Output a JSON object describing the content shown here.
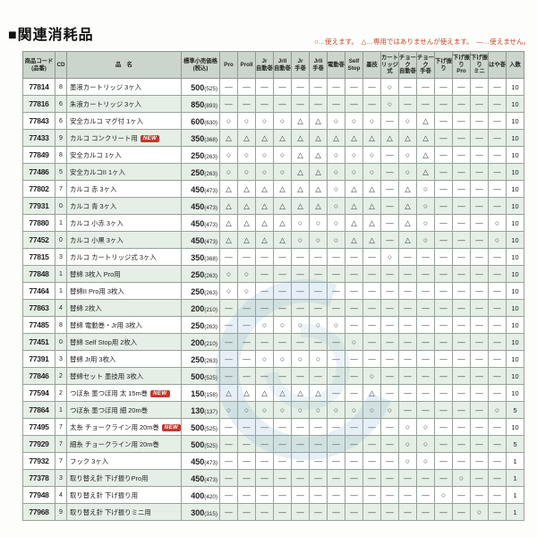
{
  "page": {
    "title": "■関連消耗品"
  },
  "legend": {
    "text": "○…使えます。　△…専用ではありませんが使えます。　—…使えません。"
  },
  "table": {
    "headers": {
      "code": "商品コード\n(品番)",
      "cd": "CD",
      "name": "品　名",
      "price": "標準小売価格\n(税込)",
      "qty": "入数"
    },
    "machine_columns": [
      "Pro",
      "ProII",
      "Jr\n自動巻",
      "JrII\n自動巻",
      "Jr\n手巻",
      "JrII\n手巻",
      "電動巻",
      "Self\nStop",
      "墨技",
      "カート\nリッジ式",
      "チョーク\n自動巻",
      "チョーク\n手巻",
      "下げ振り",
      "下げ振り\nPro",
      "下げ振り\nミニ",
      "はや巻"
    ],
    "new_badge": "NEW",
    "rows": [
      {
        "code": "77814",
        "cd": "8",
        "name": "墨液カートリッジ 3ヶ入",
        "new": false,
        "price": "500",
        "tax": "(525)",
        "marks": [
          "—",
          "—",
          "—",
          "—",
          "—",
          "—",
          "—",
          "—",
          "—",
          "○",
          "—",
          "—",
          "—",
          "—",
          "—",
          "—"
        ],
        "qty": "10"
      },
      {
        "code": "77816",
        "cd": "6",
        "name": "朱液カートリッジ 3ヶ入",
        "new": false,
        "price": "850",
        "tax": "(893)",
        "marks": [
          "—",
          "—",
          "—",
          "—",
          "—",
          "—",
          "—",
          "—",
          "—",
          "○",
          "—",
          "—",
          "—",
          "—",
          "—",
          "—"
        ],
        "qty": "10"
      },
      {
        "code": "77843",
        "cd": "6",
        "name": "安全カルコ マグ付 1ヶ入",
        "new": false,
        "price": "600",
        "tax": "(630)",
        "marks": [
          "○",
          "○",
          "○",
          "○",
          "△",
          "△",
          "○",
          "○",
          "○",
          "—",
          "○",
          "△",
          "—",
          "—",
          "—",
          "—"
        ],
        "qty": "10"
      },
      {
        "code": "77433",
        "cd": "9",
        "name": "カルコ コンクリート用",
        "new": true,
        "price": "350",
        "tax": "(368)",
        "marks": [
          "△",
          "△",
          "△",
          "△",
          "△",
          "△",
          "△",
          "△",
          "△",
          "△",
          "△",
          "△",
          "—",
          "—",
          "—",
          "—"
        ],
        "qty": "10"
      },
      {
        "code": "77849",
        "cd": "8",
        "name": "安全カルコ 1ヶ入",
        "new": false,
        "price": "250",
        "tax": "(263)",
        "marks": [
          "○",
          "○",
          "○",
          "○",
          "△",
          "△",
          "○",
          "○",
          "○",
          "—",
          "○",
          "△",
          "—",
          "—",
          "—",
          "—"
        ],
        "qty": "10"
      },
      {
        "code": "77486",
        "cd": "5",
        "name": "安全カルコII 1ヶ入",
        "new": false,
        "price": "250",
        "tax": "(263)",
        "marks": [
          "○",
          "○",
          "○",
          "○",
          "△",
          "△",
          "○",
          "○",
          "○",
          "—",
          "○",
          "△",
          "—",
          "—",
          "—",
          "—"
        ],
        "qty": "10"
      },
      {
        "code": "77802",
        "cd": "7",
        "name": "カルコ 赤 3ヶ入",
        "new": false,
        "price": "450",
        "tax": "(473)",
        "marks": [
          "△",
          "△",
          "△",
          "△",
          "△",
          "△",
          "○",
          "△",
          "△",
          "—",
          "△",
          "○",
          "—",
          "—",
          "—",
          "—"
        ],
        "qty": "10"
      },
      {
        "code": "77931",
        "cd": "0",
        "name": "カルコ 青 3ヶ入",
        "new": false,
        "price": "450",
        "tax": "(473)",
        "marks": [
          "△",
          "△",
          "△",
          "△",
          "△",
          "△",
          "○",
          "△",
          "△",
          "—",
          "△",
          "○",
          "—",
          "—",
          "—",
          "—"
        ],
        "qty": "10"
      },
      {
        "code": "77880",
        "cd": "1",
        "name": "カルコ 小赤 3ヶ入",
        "new": false,
        "price": "450",
        "tax": "(473)",
        "marks": [
          "△",
          "△",
          "△",
          "△",
          "○",
          "○",
          "○",
          "△",
          "△",
          "—",
          "△",
          "○",
          "—",
          "—",
          "—",
          "○"
        ],
        "qty": "10"
      },
      {
        "code": "77452",
        "cd": "0",
        "name": "カルコ 小黒 3ヶ入",
        "new": false,
        "price": "450",
        "tax": "(473)",
        "marks": [
          "△",
          "△",
          "△",
          "△",
          "○",
          "○",
          "○",
          "△",
          "△",
          "—",
          "△",
          "○",
          "—",
          "—",
          "—",
          "○"
        ],
        "qty": "10"
      },
      {
        "code": "77815",
        "cd": "3",
        "name": "カルコ カートリッジ式 3ヶ入",
        "new": false,
        "price": "350",
        "tax": "(368)",
        "marks": [
          "—",
          "—",
          "—",
          "—",
          "—",
          "—",
          "—",
          "—",
          "—",
          "○",
          "—",
          "—",
          "—",
          "—",
          "—",
          "—"
        ],
        "qty": "10"
      },
      {
        "code": "77848",
        "cd": "1",
        "name": "替綿 3枚入 Pro用",
        "new": false,
        "price": "250",
        "tax": "(263)",
        "marks": [
          "○",
          "○",
          "—",
          "—",
          "—",
          "—",
          "—",
          "—",
          "—",
          "—",
          "—",
          "—",
          "—",
          "—",
          "—",
          "—"
        ],
        "qty": "10"
      },
      {
        "code": "77464",
        "cd": "1",
        "name": "替綿II Pro用 3枚入",
        "new": false,
        "price": "250",
        "tax": "(263)",
        "marks": [
          "○",
          "○",
          "—",
          "—",
          "—",
          "—",
          "—",
          "—",
          "—",
          "—",
          "—",
          "—",
          "—",
          "—",
          "—",
          "—"
        ],
        "qty": "10"
      },
      {
        "code": "77863",
        "cd": "4",
        "name": "替綿 2枚入",
        "new": false,
        "price": "200",
        "tax": "(210)",
        "marks": [
          "—",
          "—",
          "—",
          "—",
          "—",
          "—",
          "—",
          "—",
          "—",
          "—",
          "—",
          "—",
          "—",
          "—",
          "—",
          "—"
        ],
        "qty": "10"
      },
      {
        "code": "77485",
        "cd": "8",
        "name": "替綿 電動巻・Jr用 3枚入",
        "new": false,
        "price": "250",
        "tax": "(263)",
        "marks": [
          "—",
          "—",
          "○",
          "○",
          "○",
          "○",
          "○",
          "—",
          "—",
          "—",
          "—",
          "—",
          "—",
          "—",
          "—",
          "—"
        ],
        "qty": "10"
      },
      {
        "code": "77451",
        "cd": "0",
        "name": "替綿 Self Stop用 2枚入",
        "new": false,
        "price": "200",
        "tax": "(210)",
        "marks": [
          "—",
          "—",
          "—",
          "—",
          "—",
          "—",
          "—",
          "○",
          "—",
          "—",
          "—",
          "—",
          "—",
          "—",
          "—",
          "—"
        ],
        "qty": "10"
      },
      {
        "code": "77391",
        "cd": "3",
        "name": "替綿 Jr用 3枚入",
        "new": false,
        "price": "250",
        "tax": "(263)",
        "marks": [
          "—",
          "—",
          "○",
          "○",
          "○",
          "○",
          "—",
          "—",
          "—",
          "—",
          "—",
          "—",
          "—",
          "—",
          "—",
          "—"
        ],
        "qty": "10"
      },
      {
        "code": "77846",
        "cd": "2",
        "name": "替綿セット 墨技用 3枚入",
        "new": false,
        "price": "500",
        "tax": "(525)",
        "marks": [
          "—",
          "—",
          "—",
          "—",
          "—",
          "—",
          "—",
          "—",
          "○",
          "—",
          "—",
          "—",
          "—",
          "—",
          "—",
          "—"
        ],
        "qty": "10"
      },
      {
        "code": "77594",
        "cd": "2",
        "name": "つぼ糸 墨つぼ用 太 15m巻",
        "new": true,
        "price": "150",
        "tax": "(158)",
        "marks": [
          "△",
          "△",
          "△",
          "△",
          "△",
          "△",
          "—",
          "—",
          "△",
          "—",
          "—",
          "—",
          "—",
          "—",
          "—",
          "—"
        ],
        "qty": "10"
      },
      {
        "code": "77864",
        "cd": "1",
        "name": "つぼ糸 墨つぼ用 細 20m巻",
        "new": false,
        "price": "130",
        "tax": "(137)",
        "marks": [
          "○",
          "○",
          "○",
          "○",
          "○",
          "○",
          "○",
          "○",
          "○",
          "○",
          "—",
          "—",
          "—",
          "—",
          "—",
          "○"
        ],
        "qty": "5"
      },
      {
        "code": "77495",
        "cd": "7",
        "name": "太糸 チョークライン用 20m巻",
        "new": true,
        "price": "500",
        "tax": "(525)",
        "marks": [
          "—",
          "—",
          "—",
          "—",
          "—",
          "—",
          "—",
          "—",
          "—",
          "—",
          "○",
          "○",
          "—",
          "—",
          "—",
          "—"
        ],
        "qty": "10"
      },
      {
        "code": "77929",
        "cd": "7",
        "name": "細糸 チョークライン用 20m巻",
        "new": false,
        "price": "500",
        "tax": "(525)",
        "marks": [
          "—",
          "—",
          "—",
          "—",
          "—",
          "—",
          "—",
          "—",
          "—",
          "—",
          "○",
          "○",
          "—",
          "—",
          "—",
          "—"
        ],
        "qty": "5"
      },
      {
        "code": "77932",
        "cd": "7",
        "name": "フック 3ヶ入",
        "new": false,
        "price": "450",
        "tax": "(473)",
        "marks": [
          "—",
          "—",
          "—",
          "—",
          "—",
          "—",
          "—",
          "—",
          "—",
          "—",
          "○",
          "○",
          "—",
          "—",
          "—",
          "—"
        ],
        "qty": "1"
      },
      {
        "code": "77378",
        "cd": "3",
        "name": "取り替え針 下げ振りPro用",
        "new": false,
        "price": "450",
        "tax": "(473)",
        "marks": [
          "—",
          "—",
          "—",
          "—",
          "—",
          "—",
          "—",
          "—",
          "—",
          "—",
          "—",
          "—",
          "—",
          "○",
          "—",
          "—"
        ],
        "qty": "1"
      },
      {
        "code": "77948",
        "cd": "4",
        "name": "取り替え針 下げ振り用",
        "new": false,
        "price": "400",
        "tax": "(420)",
        "marks": [
          "—",
          "—",
          "—",
          "—",
          "—",
          "—",
          "—",
          "—",
          "—",
          "—",
          "—",
          "—",
          "○",
          "—",
          "—",
          "—"
        ],
        "qty": "1"
      },
      {
        "code": "77968",
        "cd": "9",
        "name": "取り替え針 下げ振りミニ用",
        "new": false,
        "price": "300",
        "tax": "(315)",
        "marks": [
          "—",
          "—",
          "—",
          "—",
          "—",
          "—",
          "—",
          "—",
          "—",
          "—",
          "—",
          "—",
          "—",
          "—",
          "○",
          "—"
        ],
        "qty": "1"
      }
    ]
  }
}
